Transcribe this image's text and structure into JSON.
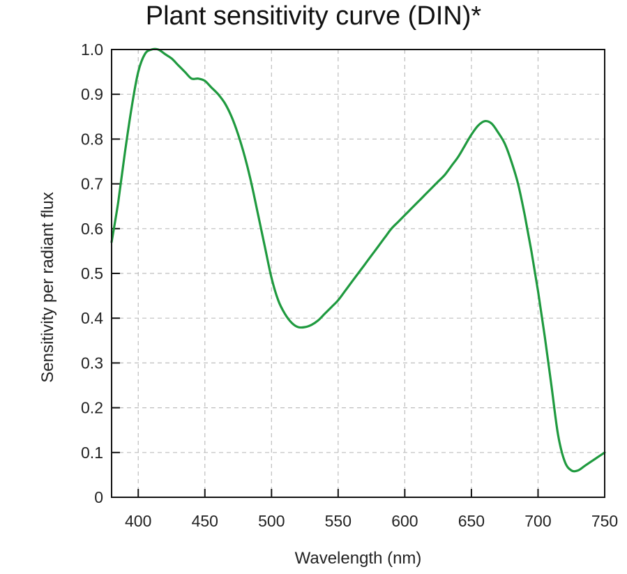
{
  "chart_data": {
    "type": "line",
    "title": "Plant sensitivity curve (DIN)*",
    "xlabel": "Wavelength (nm)",
    "ylabel": "Sensitivity per radiant flux",
    "xlim": [
      380,
      750
    ],
    "ylim": [
      0,
      1.0
    ],
    "x_ticks": [
      400,
      450,
      500,
      550,
      600,
      650,
      700,
      750
    ],
    "x_tick_labels": [
      "400",
      "450",
      "500",
      "550",
      "600",
      "650",
      "700",
      "750"
    ],
    "y_ticks": [
      0,
      0.1,
      0.2,
      0.3,
      0.4,
      0.5,
      0.6,
      0.7,
      0.8,
      0.9,
      1.0
    ],
    "y_tick_labels": [
      "0",
      "0.1",
      "0.2",
      "0.3",
      "0.4",
      "0.5",
      "0.6",
      "0.7",
      "0.8",
      "0.9",
      "1.0"
    ],
    "grid": true,
    "line_color": "#1f9a3f",
    "series": [
      {
        "x": [
          380,
          385,
          390,
          395,
          400,
          405,
          410,
          415,
          420,
          425,
          430,
          435,
          440,
          445,
          450,
          455,
          460,
          465,
          470,
          475,
          480,
          485,
          490,
          495,
          500,
          505,
          510,
          515,
          520,
          525,
          530,
          535,
          540,
          545,
          550,
          555,
          560,
          565,
          570,
          575,
          580,
          585,
          590,
          595,
          600,
          605,
          610,
          615,
          620,
          625,
          630,
          635,
          640,
          645,
          650,
          655,
          660,
          665,
          670,
          675,
          680,
          685,
          690,
          695,
          700,
          705,
          710,
          715,
          720,
          725,
          730,
          735,
          740,
          745,
          750
        ],
        "y": [
          0.57,
          0.66,
          0.77,
          0.87,
          0.95,
          0.99,
          1.0,
          1.0,
          0.99,
          0.98,
          0.965,
          0.95,
          0.935,
          0.935,
          0.93,
          0.915,
          0.9,
          0.88,
          0.85,
          0.81,
          0.76,
          0.7,
          0.63,
          0.56,
          0.49,
          0.44,
          0.41,
          0.39,
          0.38,
          0.38,
          0.385,
          0.395,
          0.41,
          0.425,
          0.44,
          0.46,
          0.48,
          0.5,
          0.52,
          0.54,
          0.56,
          0.58,
          0.6,
          0.615,
          0.63,
          0.645,
          0.66,
          0.675,
          0.69,
          0.705,
          0.72,
          0.74,
          0.76,
          0.785,
          0.81,
          0.83,
          0.84,
          0.835,
          0.815,
          0.79,
          0.75,
          0.7,
          0.63,
          0.55,
          0.46,
          0.36,
          0.25,
          0.14,
          0.08,
          0.06,
          0.06,
          0.07,
          0.08,
          0.09,
          0.1
        ]
      }
    ]
  }
}
